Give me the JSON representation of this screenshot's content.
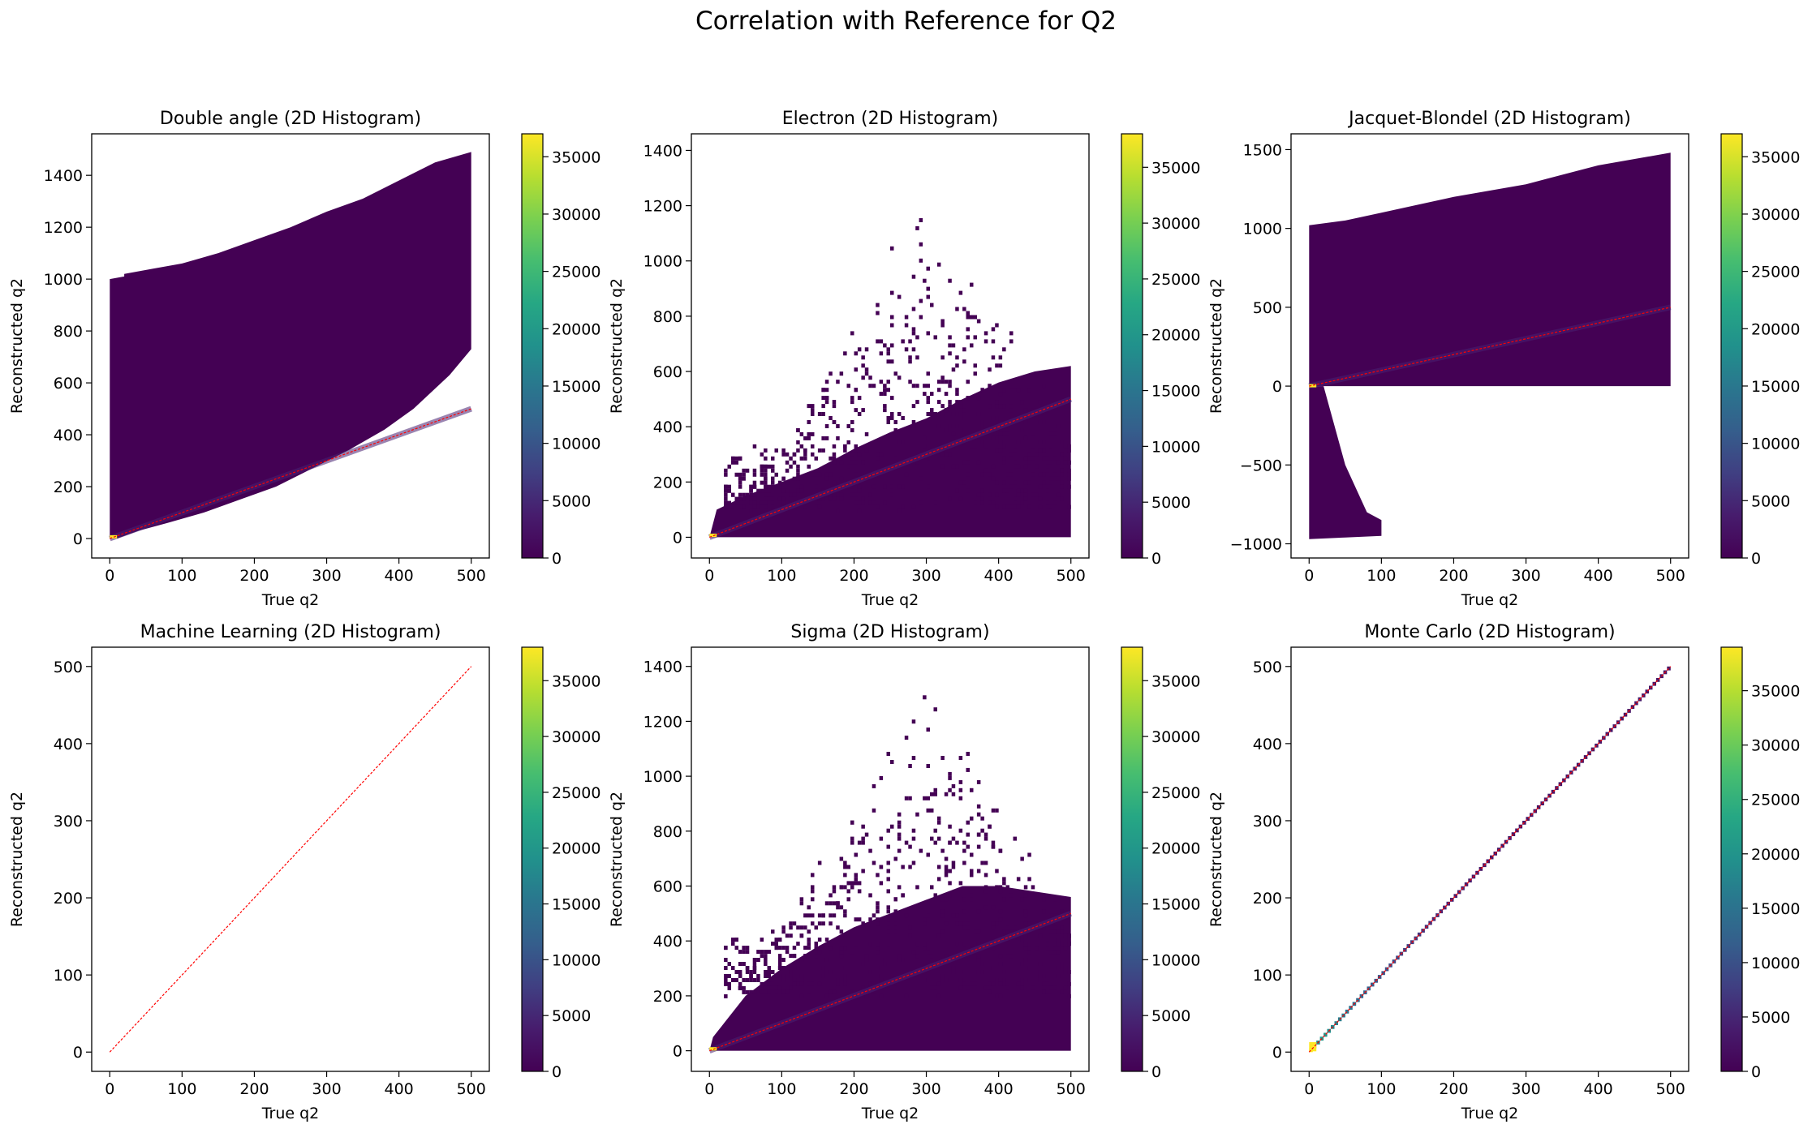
{
  "figure": {
    "suptitle": "Correlation with Reference for Q2"
  },
  "chart_data": [
    {
      "type": "heatmap",
      "title": "Double angle (2D Histogram)",
      "xlabel": "True q2",
      "ylabel": "Reconstructed q2",
      "xlim": [
        -25,
        525
      ],
      "ylim": [
        -75,
        1560
      ],
      "xticks": [
        0,
        100,
        200,
        300,
        400,
        500
      ],
      "yticks": [
        0,
        200,
        400,
        600,
        800,
        1000,
        1200,
        1400
      ],
      "colorbar": {
        "min": 0,
        "max": 37000,
        "ticks": [
          0,
          5000,
          10000,
          15000,
          20000,
          25000,
          30000,
          35000
        ]
      },
      "reference_line": {
        "from": [
          0,
          0
        ],
        "to": [
          500,
          500
        ],
        "color": "#ff0000",
        "style": "dashed"
      },
      "density_region": [
        [
          0,
          1000
        ],
        [
          20,
          1010
        ],
        [
          20,
          1020
        ],
        [
          60,
          1040
        ],
        [
          100,
          1060
        ],
        [
          150,
          1100
        ],
        [
          200,
          1150
        ],
        [
          250,
          1200
        ],
        [
          300,
          1260
        ],
        [
          350,
          1310
        ],
        [
          400,
          1380
        ],
        [
          450,
          1450
        ],
        [
          500,
          1490
        ],
        [
          500,
          730
        ],
        [
          470,
          630
        ],
        [
          420,
          500
        ],
        [
          380,
          420
        ],
        [
          330,
          340
        ],
        [
          280,
          270
        ],
        [
          230,
          200
        ],
        [
          180,
          150
        ],
        [
          130,
          100
        ],
        [
          80,
          60
        ],
        [
          40,
          30
        ],
        [
          10,
          0
        ],
        [
          0,
          0
        ]
      ],
      "peak": {
        "x": 5,
        "y": 5
      }
    },
    {
      "type": "heatmap",
      "title": "Electron (2D Histogram)",
      "xlabel": "True q2",
      "ylabel": "Reconstructed q2",
      "xlim": [
        -25,
        525
      ],
      "ylim": [
        -75,
        1460
      ],
      "xticks": [
        0,
        100,
        200,
        300,
        400,
        500
      ],
      "yticks": [
        0,
        200,
        400,
        600,
        800,
        1000,
        1200,
        1400
      ],
      "colorbar": {
        "min": 0,
        "max": 38000,
        "ticks": [
          0,
          5000,
          10000,
          15000,
          20000,
          25000,
          30000,
          35000
        ]
      },
      "reference_line": {
        "from": [
          0,
          0
        ],
        "to": [
          500,
          500
        ],
        "color": "#ff0000",
        "style": "dashed"
      },
      "density_region": [
        [
          0,
          0
        ],
        [
          10,
          100
        ],
        [
          50,
          150
        ],
        [
          100,
          200
        ],
        [
          150,
          250
        ],
        [
          200,
          320
        ],
        [
          250,
          380
        ],
        [
          300,
          430
        ],
        [
          350,
          500
        ],
        [
          400,
          560
        ],
        [
          450,
          600
        ],
        [
          500,
          620
        ],
        [
          500,
          0
        ]
      ],
      "scatter_region": {
        "x": [
          20,
          500
        ],
        "y_low": 100,
        "y_high": 1320
      },
      "peak": {
        "x": 5,
        "y": 5
      }
    },
    {
      "type": "heatmap",
      "title": "Jacquet-Blondel (2D Histogram)",
      "xlabel": "True q2",
      "ylabel": "Reconstructed q2",
      "xlim": [
        -25,
        525
      ],
      "ylim": [
        -1090,
        1600
      ],
      "xticks": [
        0,
        100,
        200,
        300,
        400,
        500
      ],
      "yticks": [
        -1000,
        -500,
        0,
        500,
        1000,
        1500
      ],
      "colorbar": {
        "min": 0,
        "max": 37000,
        "ticks": [
          0,
          5000,
          10000,
          15000,
          20000,
          25000,
          30000,
          35000
        ]
      },
      "reference_line": {
        "from": [
          0,
          0
        ],
        "to": [
          500,
          500
        ],
        "color": "#ff0000",
        "style": "dashed"
      },
      "density_region": [
        [
          0,
          0
        ],
        [
          0,
          1020
        ],
        [
          50,
          1050
        ],
        [
          100,
          1100
        ],
        [
          200,
          1200
        ],
        [
          300,
          1280
        ],
        [
          400,
          1400
        ],
        [
          500,
          1480
        ],
        [
          500,
          0
        ]
      ],
      "negative_region": [
        [
          0,
          0
        ],
        [
          20,
          0
        ],
        [
          50,
          -500
        ],
        [
          80,
          -800
        ],
        [
          100,
          -850
        ],
        [
          100,
          -950
        ],
        [
          50,
          -960
        ],
        [
          0,
          -970
        ]
      ],
      "peak": {
        "x": 5,
        "y": 5
      }
    },
    {
      "type": "heatmap",
      "title": "Machine Learning (2D Histogram)",
      "xlabel": "True q2",
      "ylabel": "Reconstructed q2",
      "xlim": [
        -25,
        525
      ],
      "ylim": [
        -25,
        525
      ],
      "xticks": [
        0,
        100,
        200,
        300,
        400,
        500
      ],
      "yticks": [
        0,
        100,
        200,
        300,
        400,
        500
      ],
      "colorbar": {
        "min": 0,
        "max": 38000,
        "ticks": [
          0,
          5000,
          10000,
          15000,
          20000,
          25000,
          30000,
          35000
        ]
      },
      "reference_line": {
        "from": [
          0,
          0
        ],
        "to": [
          500,
          500
        ],
        "color": "#ff0000",
        "style": "dashed"
      }
    },
    {
      "type": "heatmap",
      "title": "Sigma (2D Histogram)",
      "xlabel": "True q2",
      "ylabel": "Reconstructed q2",
      "xlim": [
        -25,
        525
      ],
      "ylim": [
        -75,
        1470
      ],
      "xticks": [
        0,
        100,
        200,
        300,
        400,
        500
      ],
      "yticks": [
        0,
        200,
        400,
        600,
        800,
        1000,
        1200,
        1400
      ],
      "colorbar": {
        "min": 0,
        "max": 38000,
        "ticks": [
          0,
          5000,
          10000,
          15000,
          20000,
          25000,
          30000,
          35000
        ]
      },
      "reference_line": {
        "from": [
          0,
          0
        ],
        "to": [
          500,
          500
        ],
        "color": "#ff0000",
        "style": "dashed"
      },
      "density_region": [
        [
          0,
          0
        ],
        [
          5,
          50
        ],
        [
          20,
          100
        ],
        [
          50,
          200
        ],
        [
          100,
          300
        ],
        [
          150,
          380
        ],
        [
          200,
          450
        ],
        [
          250,
          500
        ],
        [
          300,
          550
        ],
        [
          350,
          600
        ],
        [
          400,
          600
        ],
        [
          450,
          580
        ],
        [
          500,
          560
        ],
        [
          500,
          0
        ]
      ],
      "scatter_region": {
        "x": [
          20,
          500
        ],
        "y_low": 200,
        "y_high": 1400
      },
      "peak": {
        "x": 5,
        "y": 5
      }
    },
    {
      "type": "heatmap",
      "title": "Monte Carlo (2D Histogram)",
      "xlabel": "True q2",
      "ylabel": "Reconstructed q2",
      "xlim": [
        -25,
        525
      ],
      "ylim": [
        -25,
        525
      ],
      "xticks": [
        0,
        100,
        200,
        300,
        400,
        500
      ],
      "yticks": [
        0,
        100,
        200,
        300,
        400,
        500
      ],
      "colorbar": {
        "min": 0,
        "max": 39000,
        "ticks": [
          0,
          5000,
          10000,
          15000,
          20000,
          25000,
          30000,
          35000
        ]
      },
      "reference_line": {
        "from": [
          0,
          0
        ],
        "to": [
          500,
          500
        ],
        "color": "#ff0000",
        "style": "dashed"
      },
      "diagonal_bins": true,
      "peak": {
        "x": 5,
        "y": 5
      }
    }
  ]
}
